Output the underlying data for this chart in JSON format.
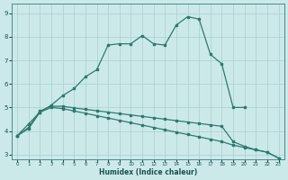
{
  "xlabel": "Humidex (Indice chaleur)",
  "background_color": "#cce9e9",
  "grid_color": "#aacfcf",
  "line_color": "#2d7a6e",
  "xlim": [
    -0.5,
    23.5
  ],
  "ylim": [
    2.8,
    9.4
  ],
  "xticks": [
    0,
    1,
    2,
    3,
    4,
    5,
    6,
    7,
    8,
    9,
    10,
    11,
    12,
    13,
    14,
    15,
    16,
    17,
    18,
    19,
    20,
    21,
    22,
    23
  ],
  "yticks": [
    3,
    4,
    5,
    6,
    7,
    8,
    9
  ],
  "series1_x": [
    0,
    1,
    2,
    3,
    4,
    5,
    6,
    7,
    8,
    9,
    10,
    11,
    12,
    13,
    14,
    15,
    16,
    17,
    18,
    19,
    20
  ],
  "series1_y": [
    3.8,
    4.3,
    4.8,
    5.1,
    5.5,
    5.8,
    6.3,
    6.6,
    7.65,
    7.7,
    7.7,
    8.05,
    7.7,
    7.65,
    8.5,
    8.85,
    8.75,
    7.25,
    6.85,
    5.0,
    5.0
  ],
  "series2_x": [
    0,
    1,
    2,
    3,
    4,
    5,
    6,
    7,
    8,
    9,
    10,
    11,
    12,
    13,
    14,
    15,
    16,
    17,
    18,
    19,
    20,
    21,
    22,
    23
  ],
  "series2_y": [
    3.8,
    4.1,
    4.8,
    5.0,
    4.95,
    4.85,
    4.75,
    4.65,
    4.55,
    4.45,
    4.35,
    4.25,
    4.15,
    4.05,
    3.95,
    3.85,
    3.75,
    3.65,
    3.55,
    3.4,
    3.3,
    3.2,
    3.1,
    2.85
  ],
  "series3_x": [
    0,
    1,
    2,
    3,
    4,
    5,
    6,
    7,
    8,
    9,
    10,
    11,
    12,
    13,
    14,
    15,
    16,
    17,
    18,
    19,
    20,
    21,
    22,
    23
  ],
  "series3_y": [
    3.8,
    4.15,
    4.85,
    5.05,
    5.05,
    4.98,
    4.92,
    4.86,
    4.8,
    4.74,
    4.68,
    4.62,
    4.56,
    4.5,
    4.44,
    4.38,
    4.32,
    4.26,
    4.2,
    3.55,
    3.35,
    3.2,
    3.1,
    2.85
  ]
}
